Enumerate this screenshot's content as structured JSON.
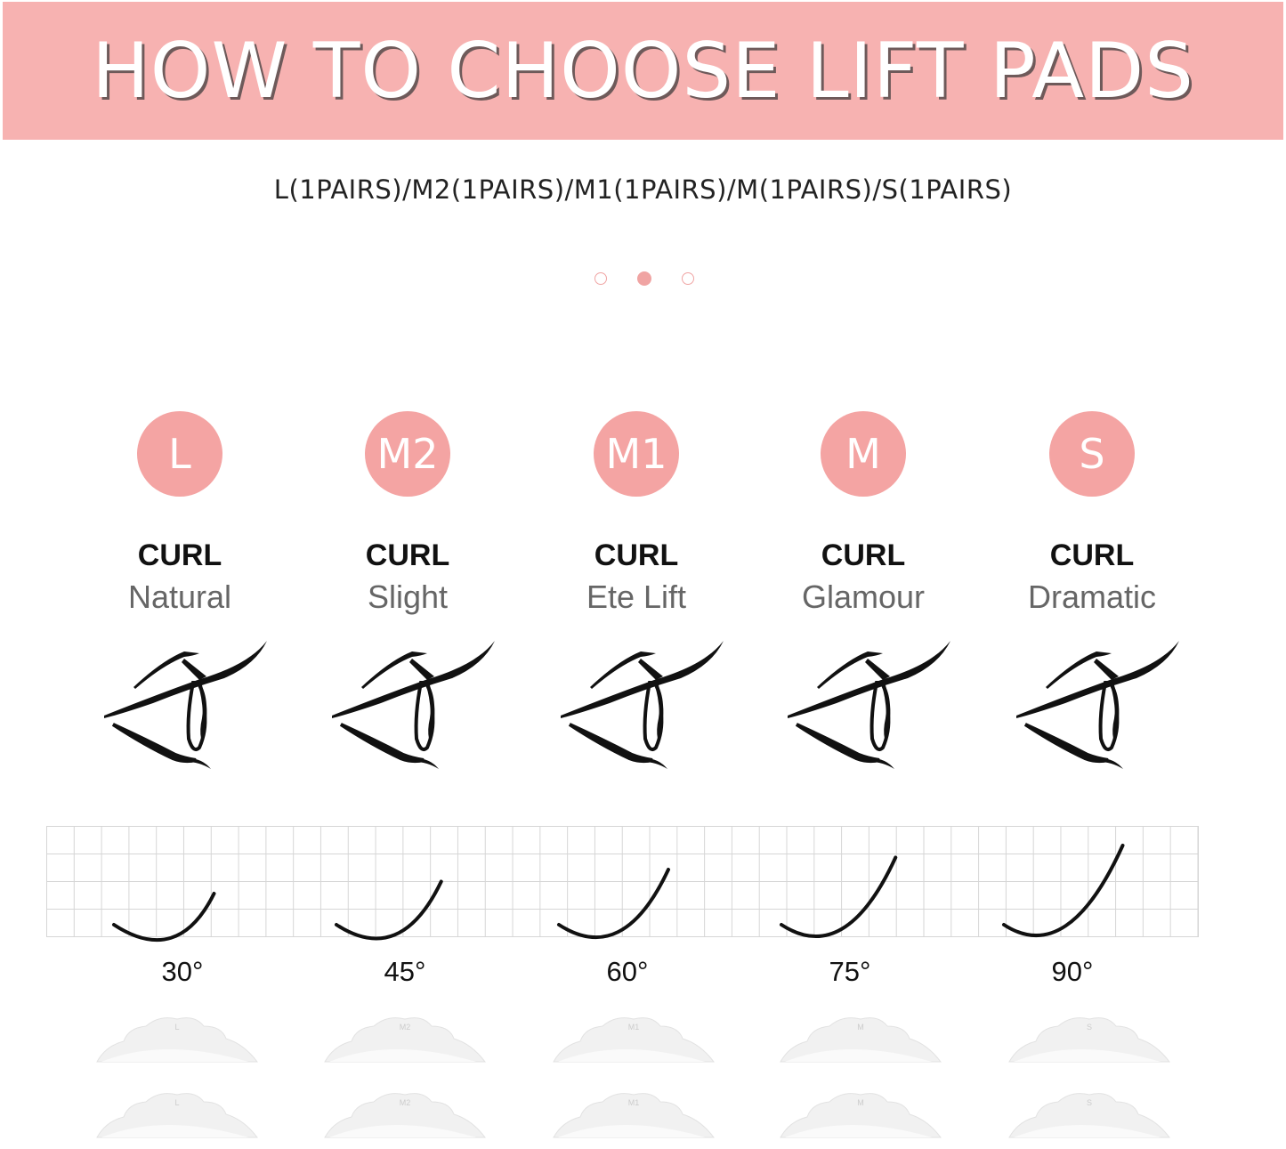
{
  "header": {
    "title": "HOW TO CHOOSE LIFT PADS",
    "background_color": "#f7b2b1"
  },
  "subtitle": "L(1PAIRS)/M2(1PAIRS)/M1(1PAIRS)/M(1PAIRS)/S(1PAIRS)",
  "pagination": {
    "count": 3,
    "active_index": 1,
    "color": "#f0a4a3"
  },
  "accent_color": "#f4a4a3",
  "sizes": [
    {
      "badge": "L",
      "curl_label": "CURL",
      "style": "Natural",
      "angle": "30°",
      "pad_label": "L"
    },
    {
      "badge": "M2",
      "curl_label": "CURL",
      "style": "Slight",
      "angle": "45°",
      "pad_label": "M2"
    },
    {
      "badge": "M1",
      "curl_label": "CURL",
      "style": "Ete Lift",
      "angle": "60°",
      "pad_label": "M1"
    },
    {
      "badge": "M",
      "curl_label": "CURL",
      "style": "Glamour",
      "angle": "75°",
      "pad_label": "M"
    },
    {
      "badge": "S",
      "curl_label": "CURL",
      "style": "Dramatic",
      "angle": "90°",
      "pad_label": "S"
    }
  ]
}
